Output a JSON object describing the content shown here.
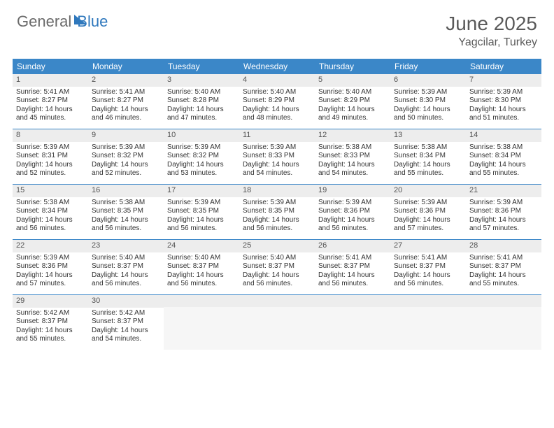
{
  "brand": {
    "part1": "General",
    "part2": "Blue"
  },
  "title": "June 2025",
  "location": "Yagcilar, Turkey",
  "colors": {
    "header_bg": "#3b87c8",
    "daynum_bg": "#ededed",
    "text": "#333333",
    "title_text": "#5a5a5a",
    "brand_gray": "#6b6b6b",
    "brand_blue": "#2f78bd",
    "border": "#3b87c8"
  },
  "typography": {
    "title_fontsize": 28,
    "location_fontsize": 16,
    "dayhead_fontsize": 12,
    "daynum_fontsize": 11,
    "body_fontsize": 10
  },
  "day_names": [
    "Sunday",
    "Monday",
    "Tuesday",
    "Wednesday",
    "Thursday",
    "Friday",
    "Saturday"
  ],
  "weeks": [
    [
      {
        "n": "1",
        "sr": "5:41 AM",
        "ss": "8:27 PM",
        "dl": "14 hours and 45 minutes."
      },
      {
        "n": "2",
        "sr": "5:41 AM",
        "ss": "8:27 PM",
        "dl": "14 hours and 46 minutes."
      },
      {
        "n": "3",
        "sr": "5:40 AM",
        "ss": "8:28 PM",
        "dl": "14 hours and 47 minutes."
      },
      {
        "n": "4",
        "sr": "5:40 AM",
        "ss": "8:29 PM",
        "dl": "14 hours and 48 minutes."
      },
      {
        "n": "5",
        "sr": "5:40 AM",
        "ss": "8:29 PM",
        "dl": "14 hours and 49 minutes."
      },
      {
        "n": "6",
        "sr": "5:39 AM",
        "ss": "8:30 PM",
        "dl": "14 hours and 50 minutes."
      },
      {
        "n": "7",
        "sr": "5:39 AM",
        "ss": "8:30 PM",
        "dl": "14 hours and 51 minutes."
      }
    ],
    [
      {
        "n": "8",
        "sr": "5:39 AM",
        "ss": "8:31 PM",
        "dl": "14 hours and 52 minutes."
      },
      {
        "n": "9",
        "sr": "5:39 AM",
        "ss": "8:32 PM",
        "dl": "14 hours and 52 minutes."
      },
      {
        "n": "10",
        "sr": "5:39 AM",
        "ss": "8:32 PM",
        "dl": "14 hours and 53 minutes."
      },
      {
        "n": "11",
        "sr": "5:39 AM",
        "ss": "8:33 PM",
        "dl": "14 hours and 54 minutes."
      },
      {
        "n": "12",
        "sr": "5:38 AM",
        "ss": "8:33 PM",
        "dl": "14 hours and 54 minutes."
      },
      {
        "n": "13",
        "sr": "5:38 AM",
        "ss": "8:34 PM",
        "dl": "14 hours and 55 minutes."
      },
      {
        "n": "14",
        "sr": "5:38 AM",
        "ss": "8:34 PM",
        "dl": "14 hours and 55 minutes."
      }
    ],
    [
      {
        "n": "15",
        "sr": "5:38 AM",
        "ss": "8:34 PM",
        "dl": "14 hours and 56 minutes."
      },
      {
        "n": "16",
        "sr": "5:38 AM",
        "ss": "8:35 PM",
        "dl": "14 hours and 56 minutes."
      },
      {
        "n": "17",
        "sr": "5:39 AM",
        "ss": "8:35 PM",
        "dl": "14 hours and 56 minutes."
      },
      {
        "n": "18",
        "sr": "5:39 AM",
        "ss": "8:35 PM",
        "dl": "14 hours and 56 minutes."
      },
      {
        "n": "19",
        "sr": "5:39 AM",
        "ss": "8:36 PM",
        "dl": "14 hours and 56 minutes."
      },
      {
        "n": "20",
        "sr": "5:39 AM",
        "ss": "8:36 PM",
        "dl": "14 hours and 57 minutes."
      },
      {
        "n": "21",
        "sr": "5:39 AM",
        "ss": "8:36 PM",
        "dl": "14 hours and 57 minutes."
      }
    ],
    [
      {
        "n": "22",
        "sr": "5:39 AM",
        "ss": "8:36 PM",
        "dl": "14 hours and 57 minutes."
      },
      {
        "n": "23",
        "sr": "5:40 AM",
        "ss": "8:37 PM",
        "dl": "14 hours and 56 minutes."
      },
      {
        "n": "24",
        "sr": "5:40 AM",
        "ss": "8:37 PM",
        "dl": "14 hours and 56 minutes."
      },
      {
        "n": "25",
        "sr": "5:40 AM",
        "ss": "8:37 PM",
        "dl": "14 hours and 56 minutes."
      },
      {
        "n": "26",
        "sr": "5:41 AM",
        "ss": "8:37 PM",
        "dl": "14 hours and 56 minutes."
      },
      {
        "n": "27",
        "sr": "5:41 AM",
        "ss": "8:37 PM",
        "dl": "14 hours and 56 minutes."
      },
      {
        "n": "28",
        "sr": "5:41 AM",
        "ss": "8:37 PM",
        "dl": "14 hours and 55 minutes."
      }
    ],
    [
      {
        "n": "29",
        "sr": "5:42 AM",
        "ss": "8:37 PM",
        "dl": "14 hours and 55 minutes."
      },
      {
        "n": "30",
        "sr": "5:42 AM",
        "ss": "8:37 PM",
        "dl": "14 hours and 54 minutes."
      },
      null,
      null,
      null,
      null,
      null
    ]
  ],
  "labels": {
    "sunrise": "Sunrise:",
    "sunset": "Sunset:",
    "daylight": "Daylight:"
  }
}
